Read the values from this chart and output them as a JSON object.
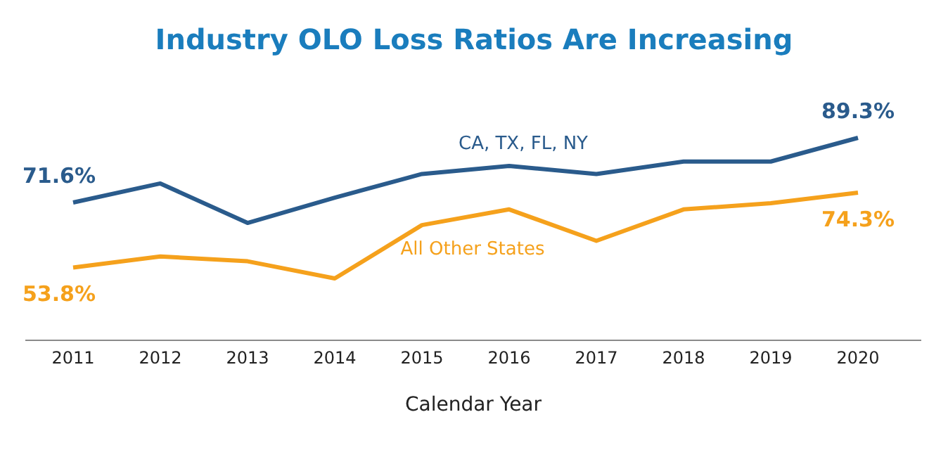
{
  "chart_data": {
    "type": "line",
    "title": "Industry OLO Loss Ratios Are Increasing",
    "xlabel": "Calendar Year",
    "categories": [
      "2011",
      "2012",
      "2013",
      "2014",
      "2015",
      "2016",
      "2017",
      "2018",
      "2019",
      "2020"
    ],
    "series": [
      {
        "name": "CA, TX, FL, NY",
        "color": "#2a5b8c",
        "values": [
          71.6,
          76.8,
          66.0,
          72.9,
          79.4,
          81.6,
          79.4,
          82.8,
          82.8,
          89.3
        ],
        "value_labels": [
          "71.6%",
          null,
          null,
          null,
          null,
          null,
          null,
          null,
          null,
          "89.3%"
        ]
      },
      {
        "name": "All Other States",
        "color": "#f5a11c",
        "values": [
          53.8,
          56.8,
          55.5,
          50.8,
          65.4,
          69.7,
          61.1,
          69.7,
          71.4,
          74.3
        ],
        "value_labels": [
          "53.8%",
          null,
          null,
          null,
          null,
          null,
          null,
          null,
          null,
          "74.3%"
        ]
      }
    ],
    "grid": false,
    "legend": false,
    "marker": "none",
    "line_style": "solid"
  }
}
